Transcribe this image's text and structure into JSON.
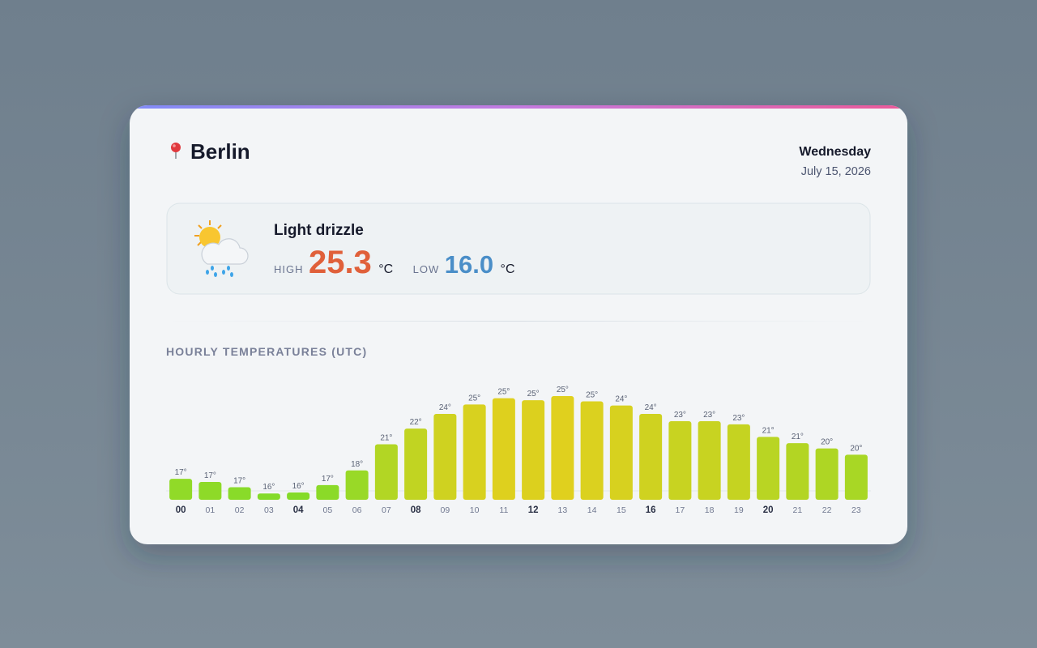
{
  "header": {
    "city": "Berlin",
    "weekday": "Wednesday",
    "date": "July 15, 2026"
  },
  "current": {
    "condition": "Light drizzle",
    "high_label": "HIGH",
    "high": 25.3,
    "low_label": "LOW",
    "low": {
      "value": 16,
      "label": "16.0"
    },
    "unit": "°C"
  },
  "chart_data": {
    "type": "bar",
    "title": "HOURLY TEMPERATURES (UTC)",
    "categories": [
      "00",
      "01",
      "02",
      "03",
      "04",
      "05",
      "06",
      "07",
      "08",
      "09",
      "10",
      "11",
      "12",
      "13",
      "14",
      "15",
      "16",
      "17",
      "18",
      "19",
      "20",
      "21",
      "22",
      "23"
    ],
    "values": [
      17.4,
      17.1,
      16.6,
      16.0,
      16.1,
      16.8,
      18.2,
      20.7,
      22.2,
      23.6,
      24.5,
      25.1,
      24.9,
      25.3,
      24.8,
      24.4,
      23.6,
      22.9,
      22.9,
      22.6,
      21.4,
      20.8,
      20.3,
      19.7
    ],
    "value_labels": [
      "17°",
      "17°",
      "17°",
      "16°",
      "16°",
      "17°",
      "18°",
      "21°",
      "22°",
      "24°",
      "25°",
      "25°",
      "25°",
      "25°",
      "25°",
      "24°",
      "24°",
      "23°",
      "23°",
      "23°",
      "21°",
      "21°",
      "20°",
      "20°"
    ],
    "ylim": [
      15.4,
      25.3
    ],
    "colors": [
      "#7ddc2a",
      "#e0d01e"
    ],
    "grid": false
  }
}
